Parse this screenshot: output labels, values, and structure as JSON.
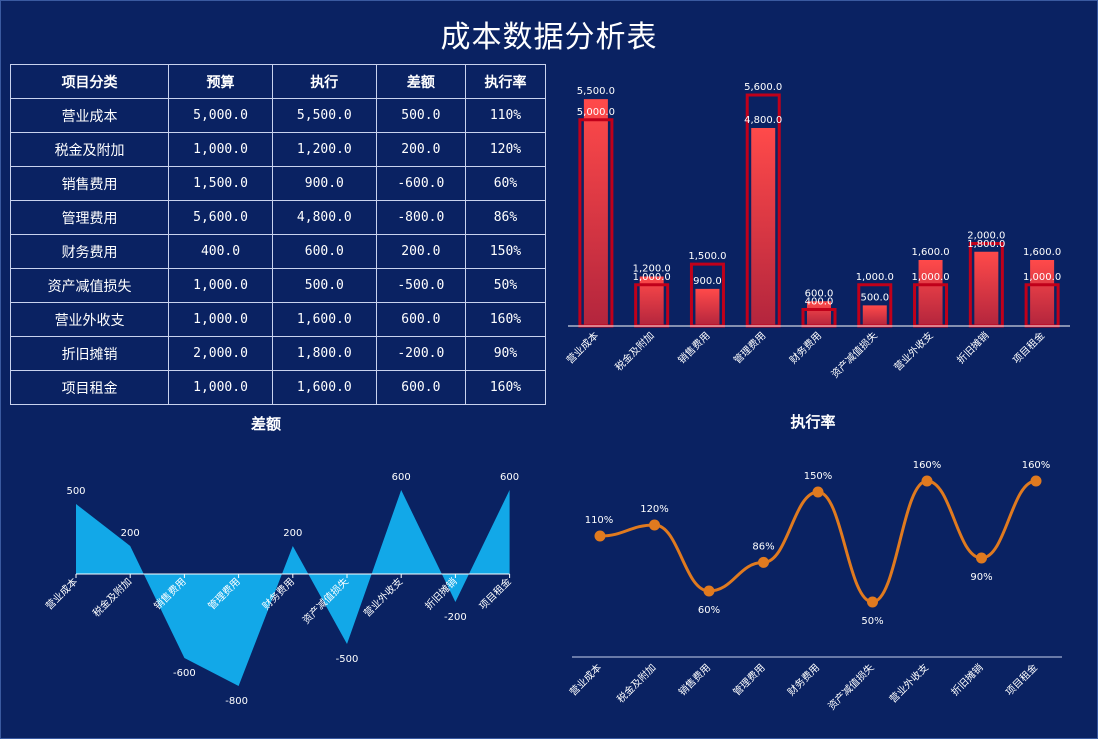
{
  "title": "成本数据分析表",
  "table": {
    "headers": [
      "项目分类",
      "预算",
      "执行",
      "差额",
      "执行率"
    ],
    "rows": [
      [
        "营业成本",
        "5,000.0",
        "5,500.0",
        "500.0",
        "110%"
      ],
      [
        "税金及附加",
        "1,000.0",
        "1,200.0",
        "200.0",
        "120%"
      ],
      [
        "销售费用",
        "1,500.0",
        "900.0",
        "-600.0",
        "60%"
      ],
      [
        "管理费用",
        "5,600.0",
        "4,800.0",
        "-800.0",
        "86%"
      ],
      [
        "财务费用",
        "400.0",
        "600.0",
        "200.0",
        "150%"
      ],
      [
        "资产减值损失",
        "1,000.0",
        "500.0",
        "-500.0",
        "50%"
      ],
      [
        "营业外收支",
        "1,000.0",
        "1,600.0",
        "600.0",
        "160%"
      ],
      [
        "折旧摊销",
        "2,000.0",
        "1,800.0",
        "-200.0",
        "90%"
      ],
      [
        "项目租金",
        "1,000.0",
        "1,600.0",
        "600.0",
        "160%"
      ]
    ]
  },
  "colors": {
    "background": "#0a2262",
    "bar_fill_top": "#ff4a4a",
    "bar_fill_bottom": "#b3253d",
    "budget_outline": "#c0001a",
    "area_fill": "#12a8e8",
    "line": "#e07a1f"
  },
  "chart_data": [
    {
      "type": "bar",
      "title": "",
      "categories": [
        "营业成本",
        "税金及附加",
        "销售费用",
        "管理费用",
        "财务费用",
        "资产减值损失",
        "营业外收支",
        "折旧摊销",
        "项目租金"
      ],
      "series": [
        {
          "values": [
            5000,
            1000,
            1500,
            5600,
            400,
            1000,
            1000,
            2000,
            1000
          ],
          "labels": [
            "5,000.0",
            "1,000.0",
            "1,500.0",
            "5,600.0",
            "400.0",
            "1,000.0",
            "1,000.0",
            "2,000.0",
            "1,000.0"
          ]
        },
        {
          "values": [
            5500,
            1200,
            900,
            4800,
            600,
            500,
            1600,
            1800,
            1600
          ],
          "labels": [
            "5,500.0",
            "1,200.0",
            "900.0",
            "4,800.0",
            "600.0",
            "500.0",
            "1,600.0",
            "1,800.0",
            "1,600.0"
          ]
        }
      ],
      "ylim": [
        0,
        5600
      ],
      "grid": false,
      "legend": "none"
    },
    {
      "type": "area",
      "title": "差额",
      "categories": [
        "营业成本",
        "税金及附加",
        "销售费用",
        "管理费用",
        "财务费用",
        "资产减值损失",
        "营业外收支",
        "折旧摊销",
        "项目租金"
      ],
      "values": [
        500,
        200,
        -600,
        -800,
        200,
        -500,
        600,
        -200,
        600
      ],
      "grid": false,
      "legend": "none"
    },
    {
      "type": "line",
      "title": "执行率",
      "categories": [
        "营业成本",
        "税金及附加",
        "销售费用",
        "管理费用",
        "财务费用",
        "资产减值损失",
        "营业外收支",
        "折旧摊销",
        "项目租金"
      ],
      "values": [
        110,
        120,
        60,
        86,
        150,
        50,
        160,
        90,
        160
      ],
      "labels": [
        "110%",
        "120%",
        "60%",
        "86%",
        "150%",
        "50%",
        "160%",
        "90%",
        "160%"
      ],
      "smooth": true,
      "grid": false,
      "legend": "none"
    }
  ]
}
